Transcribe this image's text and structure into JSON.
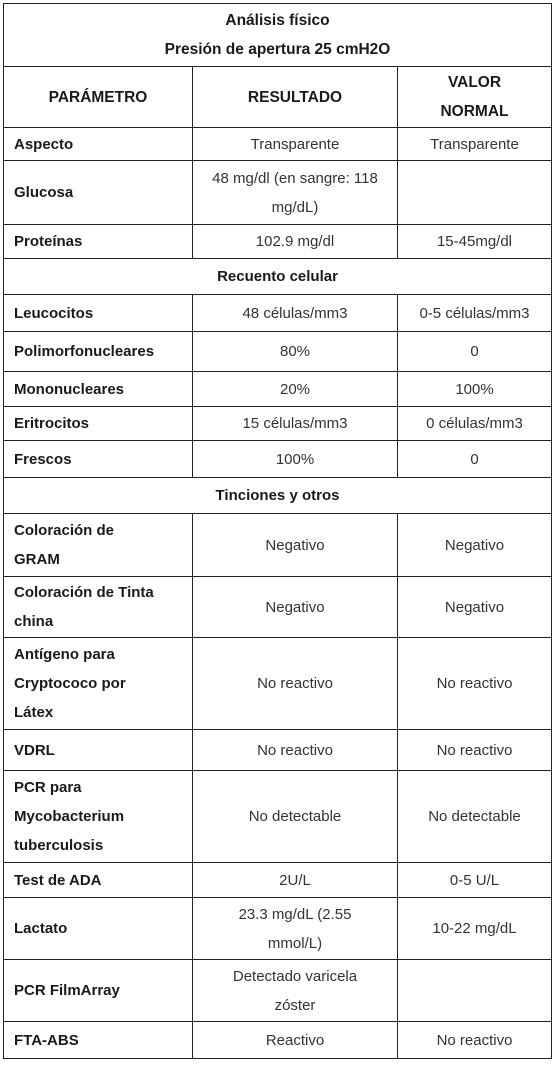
{
  "title": "Análisis físico",
  "subtitle": "Presión de apertura 25 cmH2O",
  "headers": {
    "param": "PARÁMETRO",
    "result": "RESULTADO",
    "normal": "VALOR NORMAL"
  },
  "rows_fisico": [
    {
      "param": "Aspecto",
      "result": "Transparente",
      "normal": "Transparente"
    },
    {
      "param": "Glucosa",
      "result": "48 mg/dl (en sangre: 118 mg/dL)",
      "normal": ""
    },
    {
      "param": "Proteínas",
      "result": "102.9 mg/dl",
      "normal": "15-45mg/dl"
    }
  ],
  "section_celular": "Recuento celular",
  "rows_celular": [
    {
      "param": "Leucocitos",
      "result": "48 células/mm3",
      "normal": "0-5 células/mm3"
    },
    {
      "param": "Polimorfonucleares",
      "result": "80%",
      "normal": "0"
    },
    {
      "param": "Mononucleares",
      "result": "20%",
      "normal": "100%"
    },
    {
      "param": "Eritrocitos",
      "result": "15 células/mm3",
      "normal": "0 células/mm3"
    },
    {
      "param": "Frescos",
      "result": "100%",
      "normal": "0"
    }
  ],
  "section_tinciones": "Tinciones y otros",
  "rows_tinciones": [
    {
      "param": "Coloración de GRAM",
      "result": "Negativo",
      "normal": "Negativo"
    },
    {
      "param": "Coloración de Tinta china",
      "result": "Negativo",
      "normal": "Negativo"
    },
    {
      "param": "Antígeno para Cryptococo por Látex",
      "result": "No reactivo",
      "normal": "No reactivo"
    },
    {
      "param": "VDRL",
      "result": "No reactivo",
      "normal": "No reactivo"
    },
    {
      "param": "PCR para Mycobacterium tuberculosis",
      "result": "No detectable",
      "normal": "No detectable"
    },
    {
      "param": "Test de ADA",
      "result": "2U/L",
      "normal": "0-5 U/L"
    },
    {
      "param": "Lactato",
      "result": "23.3 mg/dL (2.55 mmol/L)",
      "normal": "10-22 mg/dL"
    },
    {
      "param": "PCR FilmArray",
      "result": "Detectado varicela zóster",
      "normal": ""
    },
    {
      "param": "FTA-ABS",
      "result": "Reactivo",
      "normal": "No reactivo"
    }
  ]
}
